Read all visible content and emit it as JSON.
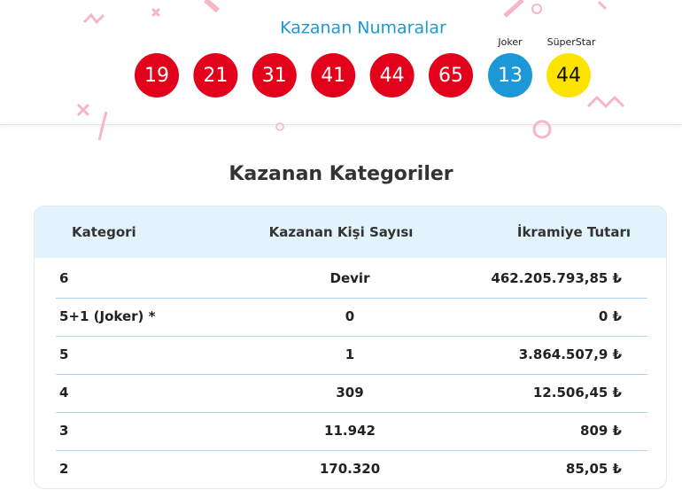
{
  "header": {
    "title": "Kazanan Numaralar",
    "numbers": [
      "19",
      "21",
      "31",
      "41",
      "44",
      "65"
    ],
    "joker": {
      "label": "Joker",
      "number": "13"
    },
    "superstar": {
      "label": "SüperStar",
      "number": "44"
    }
  },
  "section": {
    "title": "Kazanan Kategoriler"
  },
  "table": {
    "columns": [
      "Kategori",
      "Kazanan Kişi Sayısı",
      "İkramiye Tutarı"
    ],
    "rows": [
      [
        "6",
        "Devir",
        "462.205.793,85 ₺"
      ],
      [
        "5+1 (Joker) *",
        "0",
        "0 ₺"
      ],
      [
        "5",
        "1",
        "3.864.507,9 ₺"
      ],
      [
        "4",
        "309",
        "12.506,45 ₺"
      ],
      [
        "3",
        "11.942",
        "809 ₺"
      ],
      [
        "2",
        "170.320",
        "85,05 ₺"
      ]
    ]
  }
}
